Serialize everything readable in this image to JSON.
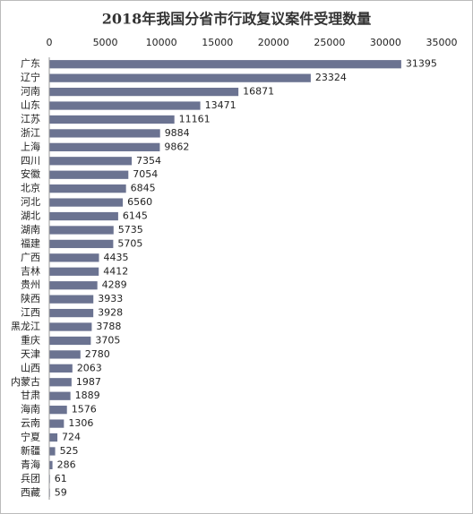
{
  "chart_data": {
    "type": "bar",
    "orientation": "horizontal",
    "title": "2018年我国分省市行政复议案件受理数量",
    "categories": [
      "广东",
      "辽宁",
      "河南",
      "山东",
      "江苏",
      "浙江",
      "上海",
      "四川",
      "安徽",
      "北京",
      "河北",
      "湖北",
      "湖南",
      "福建",
      "广西",
      "吉林",
      "贵州",
      "陕西",
      "江西",
      "黑龙江",
      "重庆",
      "天津",
      "山西",
      "内蒙古",
      "甘肃",
      "海南",
      "云南",
      "宁夏",
      "新疆",
      "青海",
      "兵团",
      "西藏"
    ],
    "values": [
      31395,
      23324,
      16871,
      13471,
      11161,
      9884,
      9862,
      7354,
      7054,
      6845,
      6560,
      6145,
      5735,
      5705,
      4435,
      4412,
      4289,
      3933,
      3928,
      3788,
      3705,
      2780,
      2063,
      1987,
      1889,
      1576,
      1306,
      724,
      525,
      286,
      61,
      59
    ],
    "color": "#6b7391",
    "xlim": [
      0,
      35000
    ],
    "xticks": [
      0,
      5000,
      10000,
      15000,
      20000,
      25000,
      30000,
      35000
    ],
    "grid": false
  }
}
